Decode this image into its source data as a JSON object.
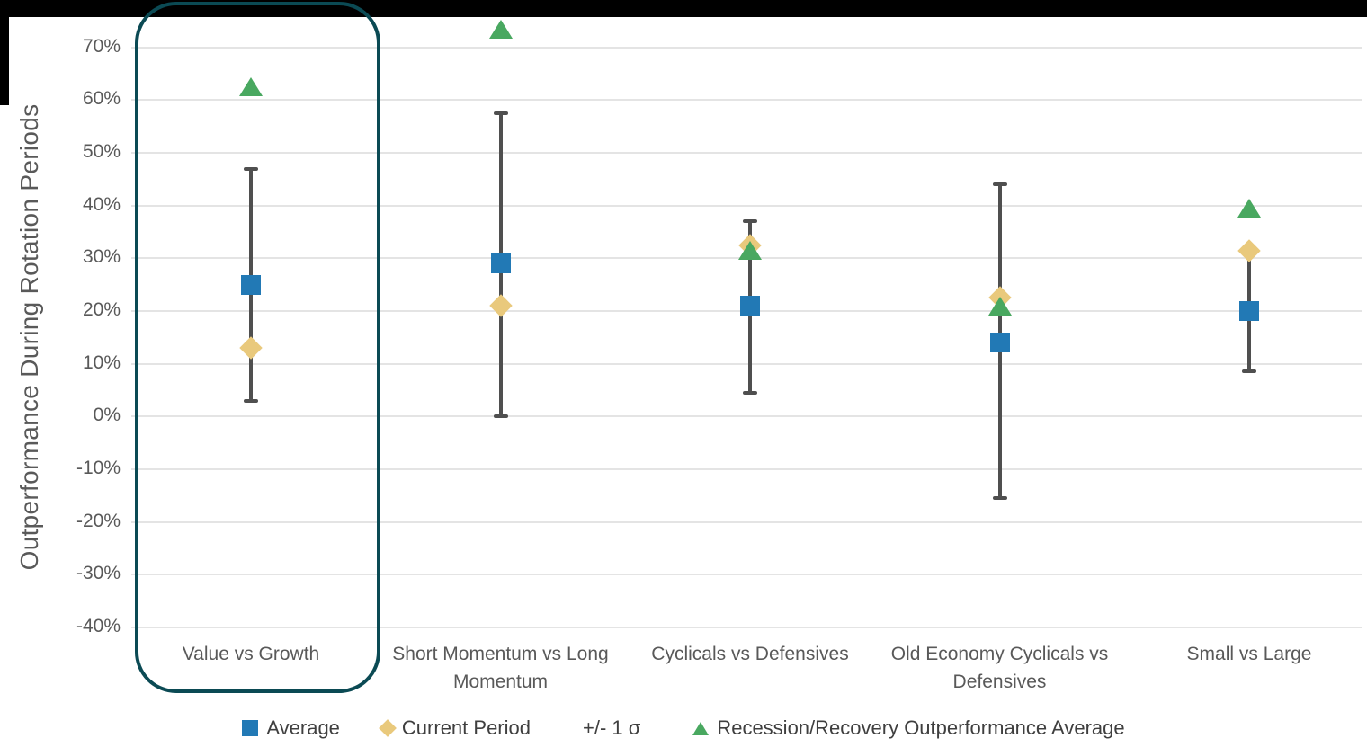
{
  "colors": {
    "background": "#FFFFFF",
    "frame_bars": "#000000",
    "grid": "#E4E4E4",
    "axis_text": "#595959",
    "legend_text": "#3F3F3F",
    "error_bar": "#4F4F4F",
    "average_blue": "#2279B5",
    "current_gold": "#E9C97C",
    "recession_green": "#49A860",
    "highlight_teal": "#0B4A54"
  },
  "highlight": {
    "target_category": "Value vs Growth",
    "color": "#0B4A54"
  },
  "legend": [
    {
      "label": "Average",
      "marker": "square",
      "color": "#2279B5"
    },
    {
      "label": "Current Period",
      "marker": "diamond",
      "color": "#E9C97C"
    },
    {
      "label": "+/- 1 σ",
      "marker": "none",
      "color": "#3F3F3F"
    },
    {
      "label": "Recession/Recovery Outperformance Average",
      "marker": "triangle",
      "color": "#49A860"
    }
  ],
  "chart_data": {
    "type": "scatter",
    "title": "",
    "xlabel": "",
    "ylabel": "Outperformance During Rotation Periods",
    "ylim": [
      -45,
      76
    ],
    "grid": true,
    "legend_position": "bottom",
    "ytick_values": [
      70,
      60,
      50,
      40,
      30,
      20,
      10,
      0,
      -10,
      -20,
      -30,
      -40
    ],
    "ytick_labels": [
      "70%",
      "60%",
      "50%",
      "40%",
      "30%",
      "20%",
      "10%",
      "0%",
      "-10%",
      "-20%",
      "-30%",
      "-40%"
    ],
    "categories": [
      "Value vs Growth",
      "Short Momentum vs Long Momentum",
      "Cyclicals vs Defensives",
      "Old Economy Cyclicals vs Defensives",
      "Small vs Large"
    ],
    "series": [
      {
        "name": "Average",
        "marker": "square",
        "color": "#2279B5",
        "values": [
          25,
          29,
          21,
          14,
          20
        ]
      },
      {
        "name": "Current Period",
        "marker": "diamond",
        "color": "#E9C97C",
        "values": [
          13,
          21,
          32.5,
          22.5,
          31.5
        ]
      },
      {
        "name": "Recession/Recovery Outperformance Average",
        "marker": "triangle",
        "color": "#49A860",
        "values": [
          62.5,
          73.5,
          31.5,
          21,
          39.5
        ]
      },
      {
        "name": "+/- 1 σ",
        "marker": "error-bar",
        "color": "#4F4F4F",
        "low": [
          3,
          0,
          4.5,
          -15.5,
          8.5
        ],
        "high": [
          47,
          57.5,
          37,
          44,
          31.5
        ]
      }
    ]
  }
}
